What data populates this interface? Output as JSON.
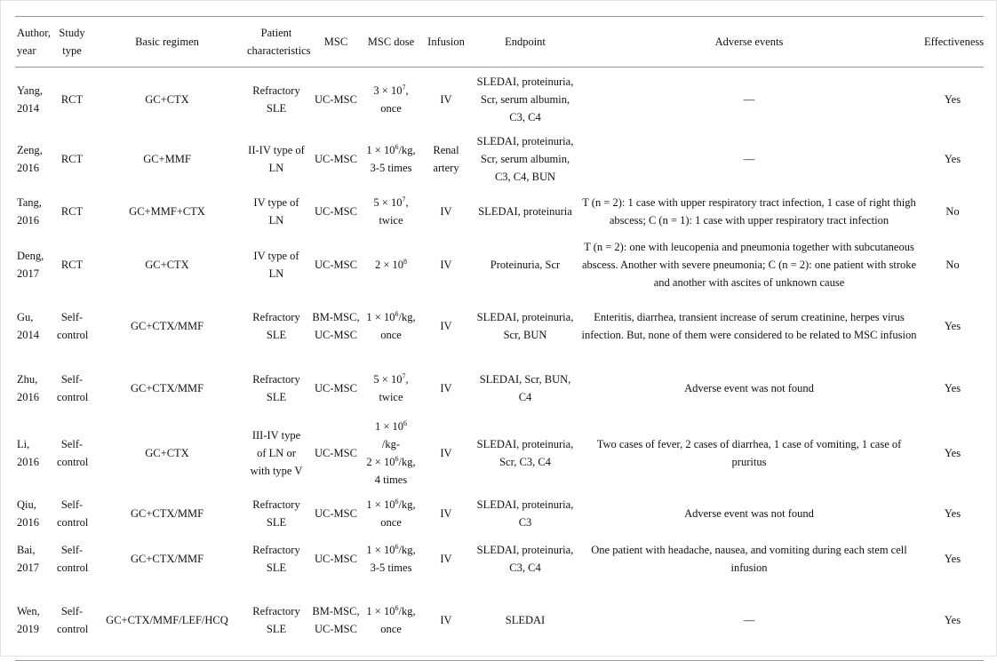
{
  "headers": [
    "Author, year",
    "Study type",
    "Basic regimen",
    "Patient characteristics",
    "MSC",
    "MSC dose",
    "Infusion",
    "Endpoint",
    "Adverse events",
    "Effectiveness"
  ],
  "rows": [
    {
      "author": "Yang, 2014",
      "type": "RCT",
      "regimen": "GC+CTX",
      "patient": "Refractory SLE",
      "msc": "UC-MSC",
      "dose": [
        {
          "t": "3 × 10",
          "sup": "7",
          "r": ","
        },
        {
          "t": "once"
        }
      ],
      "infusion": "IV",
      "endpoint": "SLEDAI, proteinuria, Scr, serum albumin, C3, C4",
      "adverse": "—",
      "effective": "Yes"
    },
    {
      "author": "Zeng, 2016",
      "type": "RCT",
      "regimen": "GC+MMF",
      "patient": "II-IV type of LN",
      "msc": "UC-MSC",
      "dose": [
        {
          "t": "1 × 10",
          "sup": "6",
          "r": "/kg,"
        },
        {
          "t": "3-5 times"
        }
      ],
      "infusion": "Renal artery",
      "endpoint": "SLEDAI, proteinuria, Scr, serum albumin, C3, C4, BUN",
      "adverse": "—",
      "effective": "Yes"
    },
    {
      "author": "Tang, 2016",
      "type": "RCT",
      "regimen": "GC+MMF+CTX",
      "patient": "IV type of LN",
      "msc": "UC-MSC",
      "dose": [
        {
          "t": "5 × 10",
          "sup": "7",
          "r": ","
        },
        {
          "t": "twice"
        }
      ],
      "infusion": "IV",
      "endpoint": "SLEDAI, proteinuria",
      "adverse": "T (n = 2): 1 case with upper respiratory tract infection, 1 case of right thigh abscess; C (n = 1): 1 case with upper respiratory tract infection",
      "effective": "No"
    },
    {
      "author": "Deng, 2017",
      "type": "RCT",
      "regimen": "GC+CTX",
      "patient": "IV type of LN",
      "msc": "UC-MSC",
      "dose": [
        {
          "t": "2 × 10",
          "sup": "8"
        }
      ],
      "infusion": "IV",
      "endpoint": "Proteinuria, Scr",
      "adverse": "T (n = 2): one with leucopenia and pneumonia together with subcutaneous abscess. Another with severe pneumonia; C (n = 2): one patient with stroke and another with ascites of unknown cause",
      "effective": "No"
    },
    {
      "author": "Gu, 2014",
      "type": "Self-control",
      "regimen": "GC+CTX/MMF",
      "patient": "Refractory SLE",
      "msc": "BM-MSC, UC-MSC",
      "dose": [
        {
          "t": "1 × 10",
          "sup": "6",
          "r": "/kg,"
        },
        {
          "t": "once"
        }
      ],
      "infusion": "IV",
      "endpoint": "SLEDAI, proteinuria, Scr, BUN",
      "adverse": "Enteritis, diarrhea, transient increase of serum creatinine, herpes virus infection. But, none of them were considered to be related to MSC infusion",
      "effective": "Yes"
    },
    {
      "author": "Zhu, 2016",
      "type": "Self-control",
      "regimen": "GC+CTX/MMF",
      "patient": "Refractory SLE",
      "msc": "UC-MSC",
      "dose": [
        {
          "t": "5 × 10",
          "sup": "7",
          "r": ","
        },
        {
          "t": "twice"
        }
      ],
      "infusion": "IV",
      "endpoint": "SLEDAI, Scr, BUN, C4",
      "adverse": "Adverse event was not found",
      "effective": "Yes"
    },
    {
      "author": "Li, 2016",
      "type": "Self-control",
      "regimen": "GC+CTX",
      "patient": "III-IV type of LN or with type V",
      "msc": "UC-MSC",
      "dose": [
        {
          "t": "1 × 10",
          "sup": "6"
        },
        {
          "t": "/kg-"
        },
        {
          "t": "2 × 10",
          "sup": "6",
          "r": "/kg,"
        },
        {
          "t": "4 times"
        }
      ],
      "infusion": "IV",
      "endpoint": "SLEDAI, proteinuria, Scr, C3, C4",
      "adverse": "Two cases of fever, 2 cases of diarrhea, 1 case of vomiting, 1 case of pruritus",
      "effective": "Yes"
    },
    {
      "author": "Qiu, 2016",
      "type": "Self-control",
      "regimen": "GC+CTX/MMF",
      "patient": "Refractory SLE",
      "msc": "UC-MSC",
      "dose": [
        {
          "t": "1 × 10",
          "sup": "6",
          "r": "/kg,"
        },
        {
          "t": "once"
        }
      ],
      "infusion": "IV",
      "endpoint": "SLEDAI, proteinuria, C3",
      "adverse": "Adverse event was not found",
      "effective": "Yes"
    },
    {
      "author": "Bai, 2017",
      "type": "Self-control",
      "regimen": "GC+CTX/MMF",
      "patient": "Refractory SLE",
      "msc": "UC-MSC",
      "dose": [
        {
          "t": "1 × 10",
          "sup": "6",
          "r": "/kg,"
        },
        {
          "t": "3-5 times"
        }
      ],
      "infusion": "IV",
      "endpoint": "SLEDAI, proteinuria, C3, C4",
      "adverse": "One patient with headache, nausea, and vomiting during each stem cell infusion",
      "effective": "Yes"
    },
    {
      "author": "Wen, 2019",
      "type": "Self-control",
      "regimen": "GC+CTX/MMF/LEF/HCQ",
      "patient": "Refractory SLE",
      "msc": "BM-MSC, UC-MSC",
      "dose": [
        {
          "t": "1 × 10",
          "sup": "6",
          "r": "/kg,"
        },
        {
          "t": "once"
        }
      ],
      "infusion": "IV",
      "endpoint": "SLEDAI",
      "adverse": "—",
      "effective": "Yes"
    }
  ]
}
